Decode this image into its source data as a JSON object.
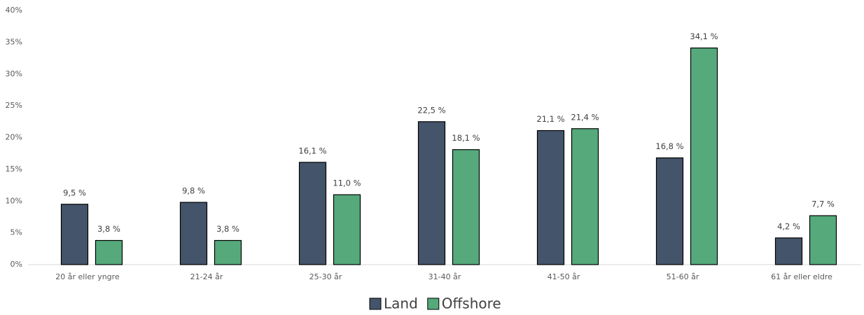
{
  "chart_data": {
    "type": "bar",
    "categories": [
      "20 år eller yngre",
      "21-24 år",
      "25-30 år",
      "31-40 år",
      "41-50 år",
      "51-60 år",
      "61 år eller eldre"
    ],
    "series": [
      {
        "name": "Land",
        "color": "#44546a",
        "values": [
          9.5,
          9.8,
          16.1,
          22.5,
          21.1,
          16.8,
          4.2
        ],
        "value_labels": [
          "9,5 %",
          "9,8 %",
          "16,1 %",
          "22,5 %",
          "21,1 %",
          "16,8 %",
          "4,2 %"
        ]
      },
      {
        "name": "Offshore",
        "color": "#55a97b",
        "values": [
          3.8,
          3.8,
          11.0,
          18.1,
          21.4,
          34.1,
          7.7
        ],
        "value_labels": [
          "3,8 %",
          "3,8 %",
          "11,0 %",
          "18,1 %",
          "21,4 %",
          "34,1 %",
          "7,7 %"
        ]
      }
    ],
    "ylim": [
      0,
      40
    ],
    "yticks": [
      {
        "value": 0,
        "label": "0%"
      },
      {
        "value": 5,
        "label": "5%"
      },
      {
        "value": 10,
        "label": "10%"
      },
      {
        "value": 15,
        "label": "15%"
      },
      {
        "value": 20,
        "label": "20%"
      },
      {
        "value": 25,
        "label": "25%"
      },
      {
        "value": 30,
        "label": "30%"
      },
      {
        "value": 35,
        "label": "35%"
      },
      {
        "value": 40,
        "label": "40%"
      }
    ],
    "grid": false,
    "legend": "bottom"
  }
}
